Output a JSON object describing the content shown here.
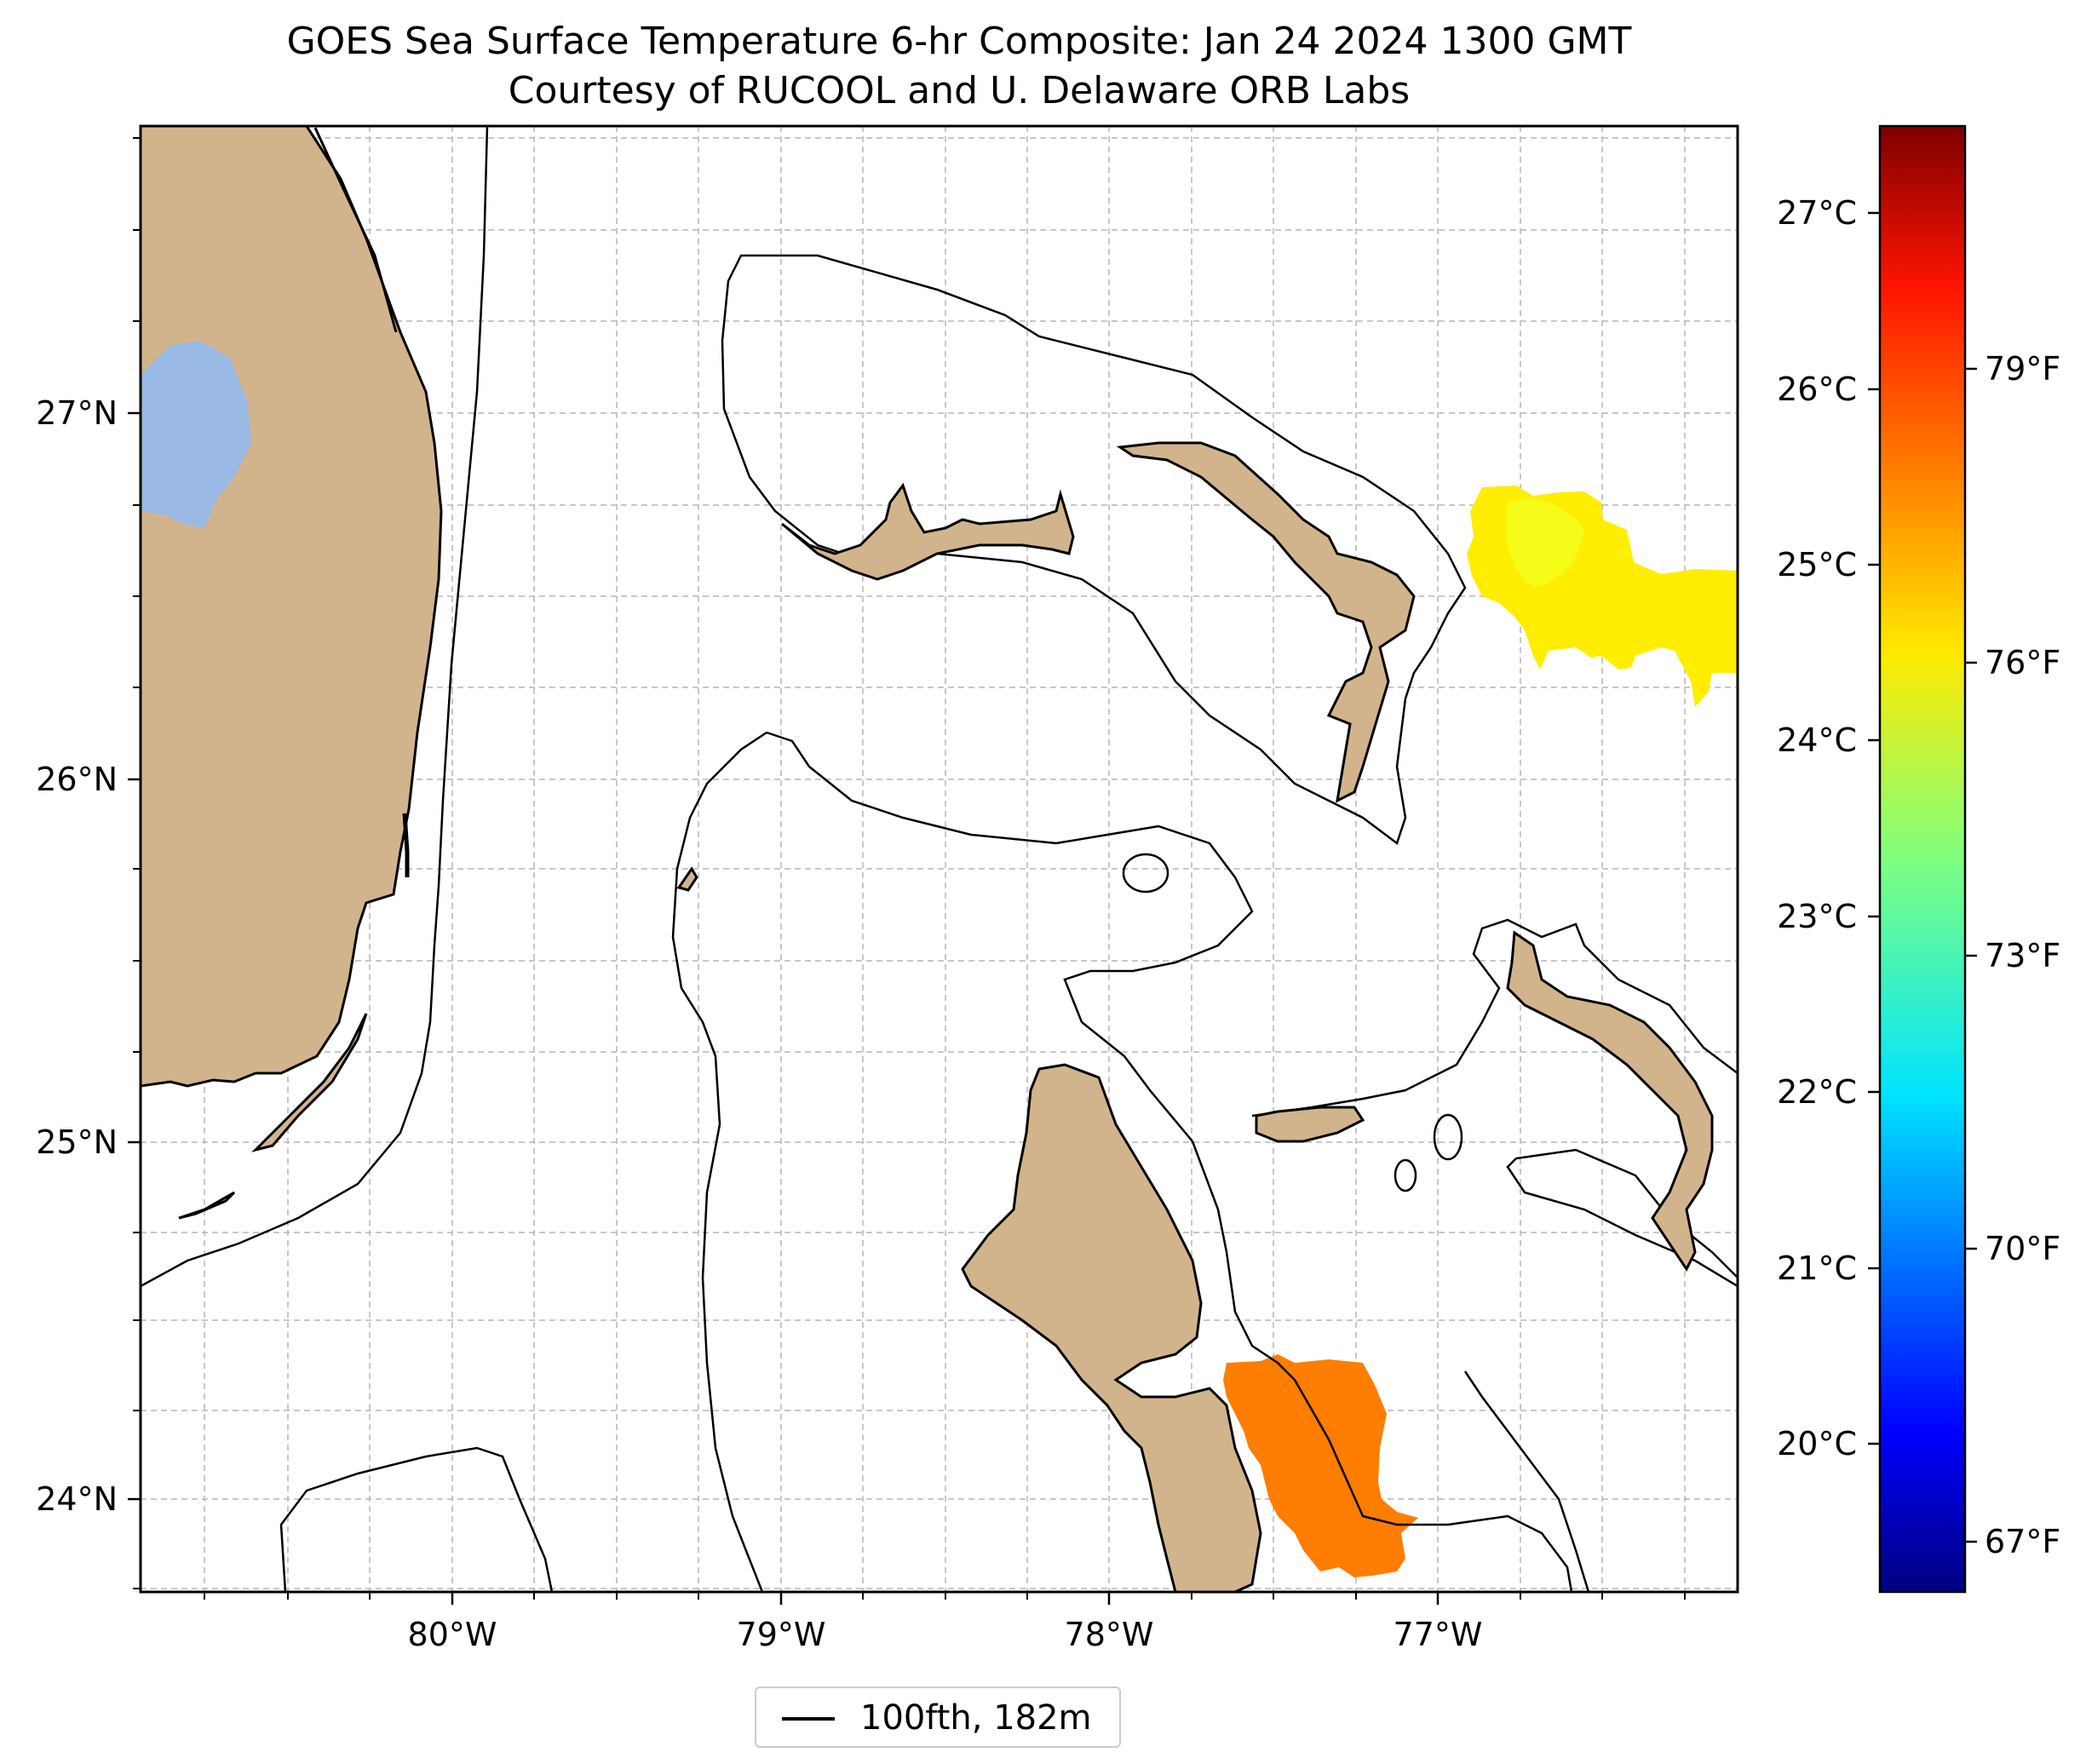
{
  "title": {
    "line1": "GOES Sea Surface Temperature 6-hr Composite: Jan 24 2024 1300 GMT",
    "line2": "Courtesy of RUCOOL and U. Delaware ORB Labs"
  },
  "map": {
    "lon_range": [
      -80.95,
      -76.1
    ],
    "lat_range": [
      23.75,
      27.8
    ],
    "lon_ticks": [
      "80°W",
      "79°W",
      "78°W",
      "77°W"
    ],
    "lat_ticks": [
      "24°N",
      "25°N",
      "26°N",
      "27°N"
    ],
    "grid": true,
    "land_color": "#d2b48c",
    "lake_color": "#9ab9e4",
    "ocean_color": "#ffffff",
    "sst_patches": [
      {
        "region": "northeast",
        "approx_temp_c": 24.7,
        "color": "#ffea00"
      },
      {
        "region": "south",
        "approx_temp_c": 26.1,
        "color": "#ff7a00"
      }
    ]
  },
  "colorbar": {
    "colormap": "jet",
    "celsius_ticks": [
      "27°C",
      "26°C",
      "25°C",
      "24°C",
      "23°C",
      "22°C",
      "21°C",
      "20°C"
    ],
    "fahrenheit_ticks": [
      "79°F",
      "76°F",
      "73°F",
      "70°F",
      "67°F"
    ]
  },
  "legend": {
    "label": "100fth, 182m",
    "line_color": "#000000"
  }
}
